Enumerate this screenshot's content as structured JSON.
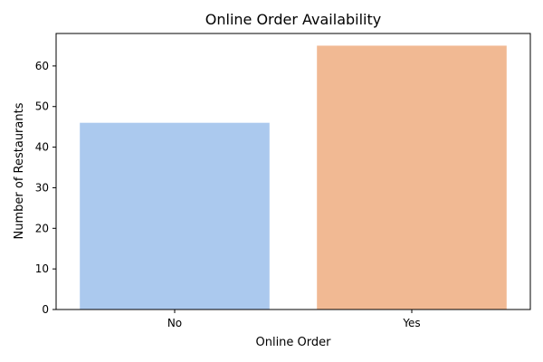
{
  "chart_data": {
    "type": "bar",
    "title": "Online Order Availability",
    "xlabel": "Online Order",
    "ylabel": "Number of Restaurants",
    "categories": [
      "No",
      "Yes"
    ],
    "values": [
      46,
      65
    ],
    "ylim": [
      0,
      68
    ],
    "yticks": [
      0,
      10,
      20,
      30,
      40,
      50,
      60
    ],
    "grid": false,
    "legend": "none",
    "colors": [
      "#abc9ee",
      "#f1b993"
    ]
  }
}
